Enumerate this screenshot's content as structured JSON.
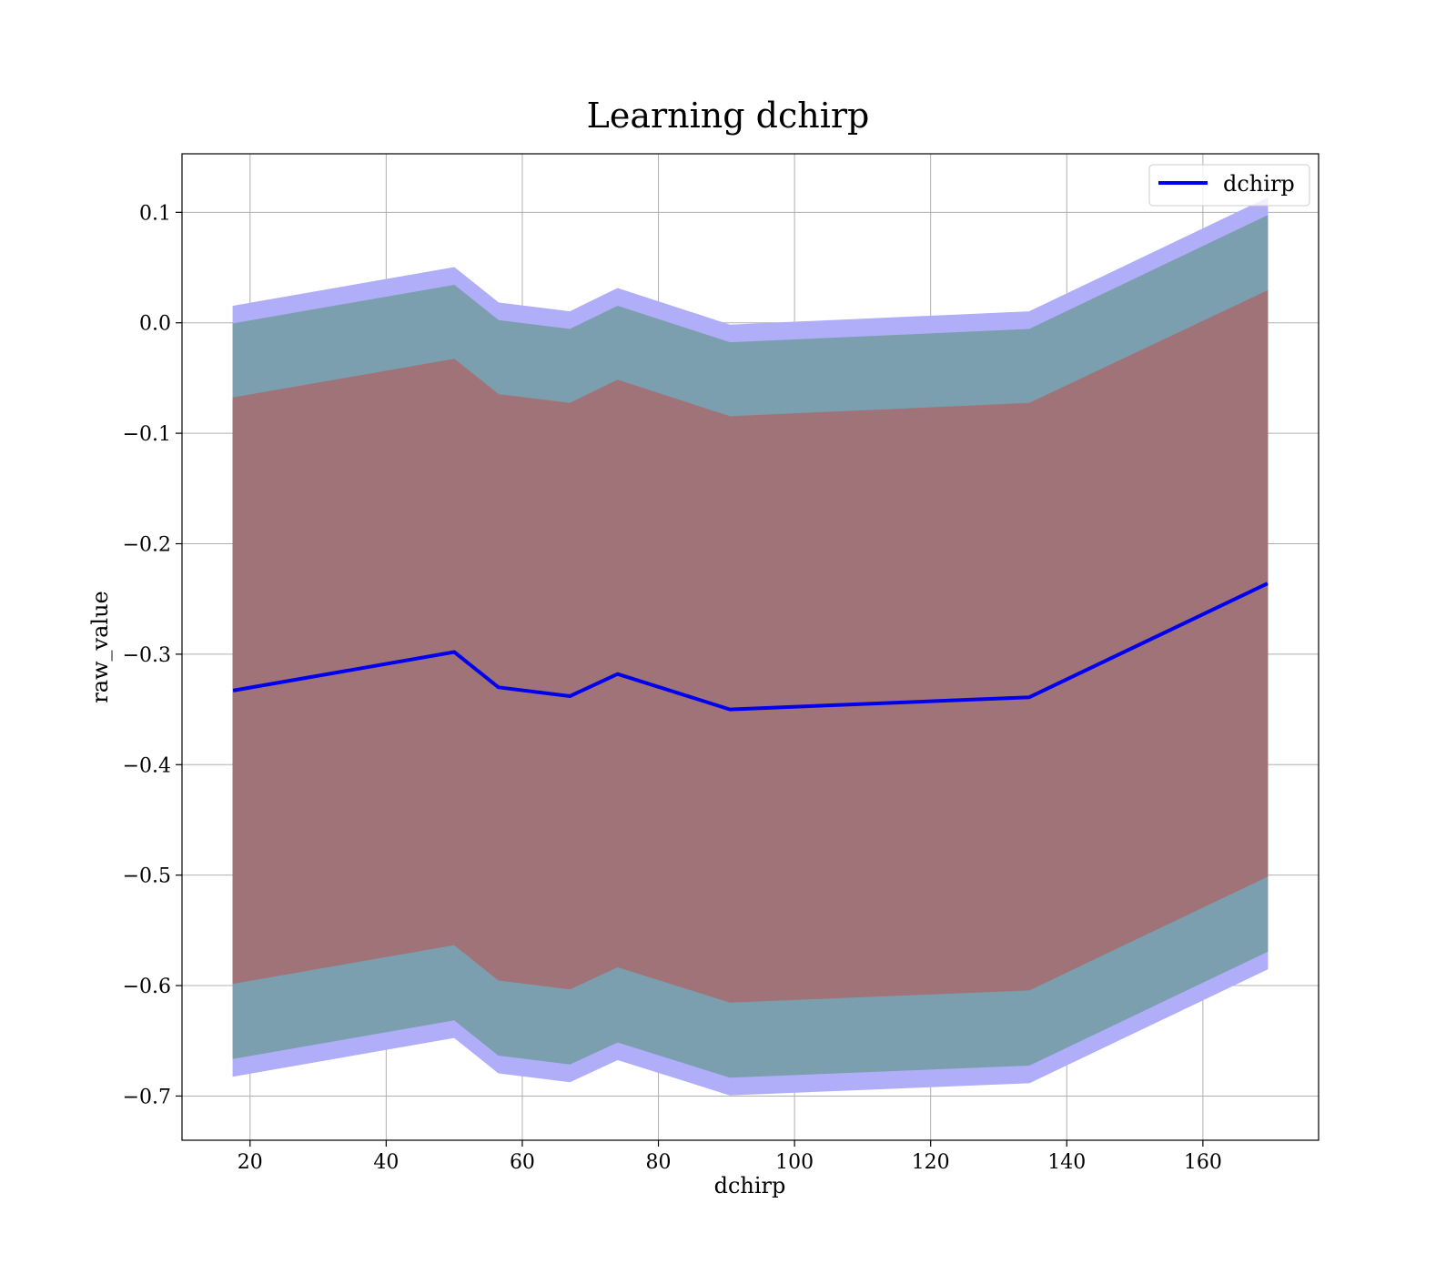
{
  "chart_data": {
    "type": "line",
    "title": "Learning dchirp",
    "xlabel": "dchirp",
    "ylabel": "raw_value",
    "xlim": [
      10,
      177
    ],
    "ylim": [
      -0.74,
      0.153
    ],
    "xticks": [
      20,
      40,
      60,
      80,
      100,
      120,
      140,
      160
    ],
    "xtick_labels": [
      "20",
      "40",
      "60",
      "80",
      "100",
      "120",
      "140",
      "160"
    ],
    "yticks": [
      0.1,
      0.0,
      -0.1,
      -0.2,
      -0.3,
      -0.4,
      -0.5,
      -0.6,
      -0.7
    ],
    "ytick_labels": [
      "0.1",
      "0.0",
      "−0.1",
      "−0.2",
      "−0.3",
      "−0.4",
      "−0.5",
      "−0.6",
      "−0.7"
    ],
    "grid": true,
    "legend_position": "top-right",
    "x": [
      17.5,
      50,
      56.5,
      67,
      74,
      90.5,
      134.5,
      169.5
    ],
    "series": [
      {
        "name": "dchirp",
        "values": [
          -0.333,
          -0.298,
          -0.33,
          -0.338,
          -0.318,
          -0.35,
          -0.339,
          -0.236
        ],
        "color": "#0000ee"
      }
    ],
    "bands": [
      {
        "role": "outer",
        "color": "#b0aef8",
        "upper": [
          0.015,
          0.05,
          0.018,
          0.01,
          0.031,
          -0.002,
          0.01,
          0.113
        ],
        "lower": [
          -0.682,
          -0.647,
          -0.679,
          -0.687,
          -0.667,
          -0.699,
          -0.688,
          -0.585
        ]
      },
      {
        "role": "middle",
        "color": "#7b9faf",
        "upper": [
          -0.001,
          0.034,
          0.002,
          -0.006,
          0.015,
          -0.018,
          -0.006,
          0.097
        ],
        "lower": [
          -0.666,
          -0.631,
          -0.663,
          -0.671,
          -0.651,
          -0.683,
          -0.672,
          -0.569
        ]
      },
      {
        "role": "inner",
        "color": "#a07379",
        "upper": [
          -0.068,
          -0.033,
          -0.065,
          -0.073,
          -0.052,
          -0.085,
          -0.073,
          0.029
        ],
        "lower": [
          -0.598,
          -0.563,
          -0.595,
          -0.603,
          -0.583,
          -0.615,
          -0.604,
          -0.501
        ]
      }
    ]
  }
}
